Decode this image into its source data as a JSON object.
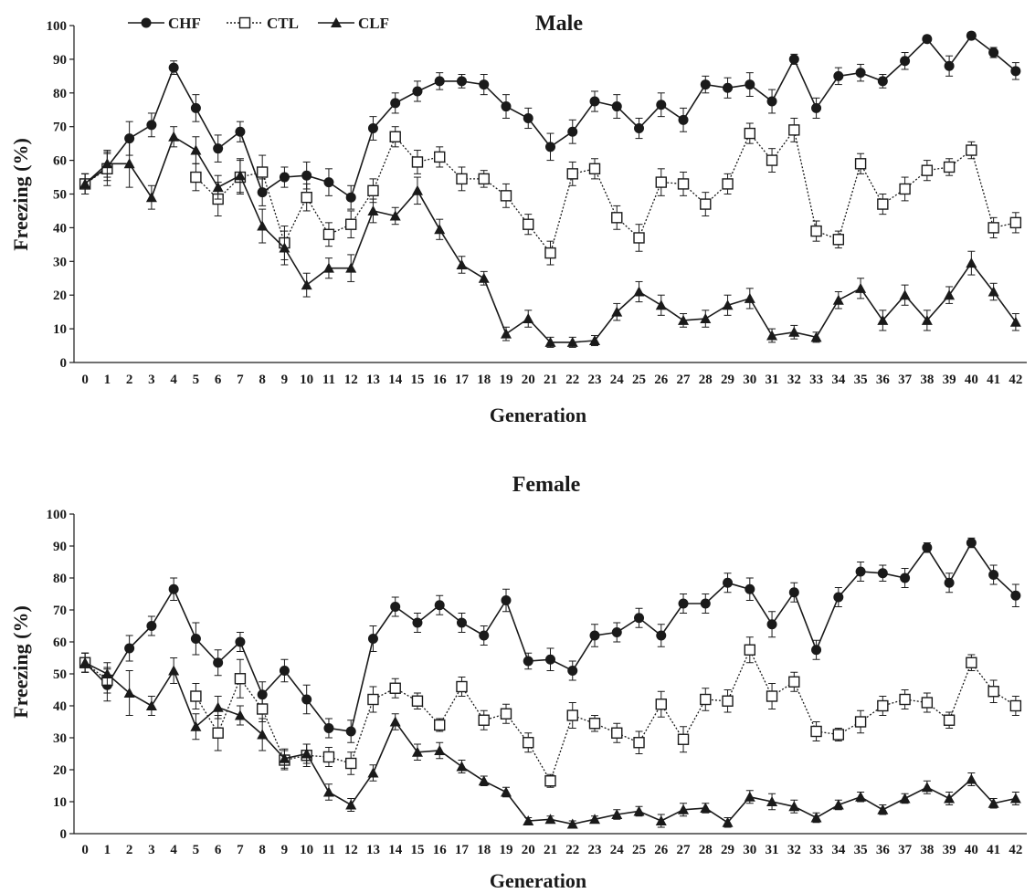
{
  "chart_data": [
    {
      "type": "line",
      "title": "Male",
      "xlabel": "Generation",
      "ylabel": "Freezing (%)",
      "ylim": [
        0,
        100
      ],
      "yticks": [
        0,
        10,
        20,
        30,
        40,
        50,
        60,
        70,
        80,
        90,
        100
      ],
      "x": [
        0,
        1,
        2,
        3,
        4,
        5,
        6,
        7,
        8,
        9,
        10,
        11,
        12,
        13,
        14,
        15,
        16,
        17,
        18,
        19,
        20,
        21,
        22,
        23,
        24,
        25,
        26,
        27,
        28,
        29,
        30,
        31,
        32,
        33,
        34,
        35,
        36,
        37,
        38,
        39,
        40,
        41,
        42
      ],
      "grid": false,
      "legend": [
        "CHF",
        "CTL",
        "CLF"
      ],
      "legend_position": "top-left",
      "series": [
        {
          "name": "CHF",
          "marker": "filled-circle",
          "line": "solid",
          "color": "#1a1a1a",
          "values": [
            53,
            58,
            66.5,
            70.5,
            87.5,
            75.5,
            63.5,
            68.5,
            50.5,
            55,
            55.5,
            53.5,
            49,
            69.5,
            77,
            80.5,
            83.5,
            83.5,
            82.5,
            76,
            72.5,
            64,
            68.5,
            77.5,
            76,
            69.5,
            76.5,
            72,
            82.5,
            81.5,
            82.5,
            77.5,
            90,
            75.5,
            85,
            86,
            83.5,
            89.5,
            96,
            88,
            97,
            92,
            86.5
          ],
          "errors": [
            3,
            4,
            5,
            3.5,
            2,
            4,
            4,
            3,
            4,
            3,
            4,
            4,
            3.5,
            3.5,
            3,
            3,
            2.5,
            2,
            3,
            3.5,
            3,
            4,
            3.5,
            3,
            3.5,
            3,
            3.5,
            3.5,
            2.5,
            3,
            3.5,
            3.5,
            1.5,
            3,
            2.5,
            2.5,
            2,
            2.5,
            1,
            3,
            1,
            1.5,
            2.5
          ]
        },
        {
          "name": "CTL",
          "marker": "open-square",
          "line": "dotted",
          "color": "#1a1a1a",
          "values": [
            53,
            57.5,
            null,
            null,
            null,
            55,
            48.5,
            55,
            56.5,
            35.5,
            49,
            38,
            41,
            51,
            67,
            59.5,
            61,
            54.5,
            54.5,
            49.5,
            41,
            32.5,
            56,
            57.5,
            43,
            37,
            53.5,
            53,
            47,
            53,
            68,
            60,
            69,
            39,
            36.5,
            59,
            47,
            51.5,
            57,
            58,
            63,
            40,
            41.5
          ],
          "errors": [
            3,
            5,
            null,
            null,
            null,
            4,
            5,
            5,
            5,
            5,
            4,
            3.5,
            4,
            3.5,
            3,
            3.5,
            3,
            3.5,
            2.5,
            3.5,
            3,
            3.5,
            3.5,
            3,
            3.5,
            4,
            4,
            3.5,
            3.5,
            3,
            3,
            3.5,
            3.5,
            3,
            2.5,
            3,
            3,
            3.5,
            3,
            2.5,
            2.5,
            3,
            3
          ]
        },
        {
          "name": "CLF",
          "marker": "filled-triangle",
          "line": "solid",
          "color": "#1a1a1a",
          "values": [
            53,
            59,
            59,
            49,
            67,
            63,
            52,
            55.5,
            40.5,
            34,
            23,
            28,
            28,
            45,
            43.5,
            51,
            39.5,
            29,
            25,
            8.5,
            13,
            6,
            6,
            6.5,
            15,
            21,
            17,
            12.5,
            13,
            17,
            19,
            8,
            9,
            7.5,
            18.5,
            22,
            12.5,
            20,
            12.5,
            20,
            29.5,
            21,
            12
          ],
          "errors": [
            3,
            4,
            7,
            3.5,
            3,
            4,
            3.5,
            5,
            5,
            5,
            3.5,
            3,
            4,
            3.5,
            2.5,
            4,
            3,
            2.5,
            2,
            2,
            2.5,
            1.5,
            1.5,
            1.5,
            2.5,
            3,
            3,
            2,
            2.5,
            3,
            3,
            2,
            2,
            1.5,
            2.5,
            3,
            3,
            3,
            3,
            2.5,
            3.5,
            2.5,
            2.5
          ]
        }
      ]
    },
    {
      "type": "line",
      "title": "Female",
      "xlabel": "Generation",
      "ylabel": "Freezing (%)",
      "ylim": [
        0,
        100
      ],
      "yticks": [
        0,
        10,
        20,
        30,
        40,
        50,
        60,
        70,
        80,
        90,
        100
      ],
      "x": [
        0,
        1,
        2,
        3,
        4,
        5,
        6,
        7,
        8,
        9,
        10,
        11,
        12,
        13,
        14,
        15,
        16,
        17,
        18,
        19,
        20,
        21,
        22,
        23,
        24,
        25,
        26,
        27,
        28,
        29,
        30,
        31,
        32,
        33,
        34,
        35,
        36,
        37,
        38,
        39,
        40,
        41,
        42
      ],
      "grid": false,
      "series": [
        {
          "name": "CHF",
          "marker": "filled-circle",
          "line": "solid",
          "color": "#1a1a1a",
          "values": [
            53.5,
            46.5,
            58,
            65,
            76.5,
            61,
            53.5,
            60,
            43.5,
            51,
            42,
            33,
            32,
            61,
            71,
            66,
            71.5,
            66,
            62,
            73,
            54,
            54.5,
            51,
            62,
            63,
            67.5,
            62,
            72,
            72,
            78.5,
            76.5,
            65.5,
            75.5,
            57.5,
            74,
            82,
            81.5,
            80,
            89.5,
            78.5,
            91,
            81,
            74.5
          ],
          "errors": [
            3,
            5,
            4,
            3,
            3.5,
            5,
            4,
            3,
            4,
            3.5,
            4.5,
            3,
            3.5,
            4,
            3,
            3,
            3,
            3,
            3,
            3.5,
            2.5,
            3.5,
            3,
            3.5,
            3,
            3,
            3.5,
            3,
            3,
            3,
            3.5,
            4,
            3,
            3,
            3,
            3,
            2.5,
            3,
            1.5,
            3,
            1.5,
            3,
            3.5
          ]
        },
        {
          "name": "CTL",
          "marker": "open-square",
          "line": "dotted",
          "color": "#1a1a1a",
          "values": [
            53.5,
            48,
            null,
            null,
            null,
            43,
            31.5,
            48.5,
            39,
            23,
            24.5,
            24,
            22,
            42,
            45.5,
            41.5,
            34,
            46,
            35.5,
            37.5,
            28.5,
            16.5,
            37,
            34.5,
            31.5,
            28.5,
            40.5,
            29.5,
            42,
            41.5,
            57.5,
            43,
            47.5,
            32,
            31,
            35,
            40,
            42,
            41,
            35.5,
            53.5,
            44.5,
            40
          ],
          "errors": [
            3,
            4,
            null,
            null,
            null,
            4,
            5.5,
            6,
            4,
            3,
            3.5,
            3,
            3.5,
            4,
            3,
            2.5,
            2,
            3,
            3,
            3,
            3,
            2,
            4,
            2.5,
            3,
            3.5,
            4,
            4,
            3.5,
            3.5,
            4,
            4,
            3,
            3,
            2,
            3.5,
            3,
            3,
            3,
            2.5,
            2.5,
            3.5,
            3
          ]
        },
        {
          "name": "CLF",
          "marker": "filled-triangle",
          "line": "solid",
          "color": "#1a1a1a",
          "values": [
            53.5,
            50,
            44,
            40,
            51,
            33.5,
            39.5,
            37,
            31,
            23.5,
            25,
            13,
            9,
            19,
            35,
            25.5,
            26,
            21,
            16.5,
            13,
            4,
            4.5,
            3,
            4.5,
            6,
            7,
            4,
            7.5,
            8,
            3.5,
            11.5,
            10,
            8.5,
            5,
            9,
            11.5,
            7.5,
            11,
            14.5,
            11,
            17,
            9.5,
            11
          ],
          "errors": [
            3,
            3.5,
            7,
            3,
            4,
            4,
            3.5,
            3,
            5,
            3,
            3,
            2.5,
            2,
            2.5,
            2.5,
            2.5,
            2.5,
            2,
            1.5,
            1.5,
            1,
            1,
            1,
            1,
            1.5,
            1.5,
            2,
            2,
            1.5,
            1.5,
            2,
            2.5,
            2,
            1.5,
            1.5,
            1.5,
            1.5,
            1.5,
            2,
            2,
            2,
            1.5,
            2
          ]
        }
      ]
    }
  ]
}
